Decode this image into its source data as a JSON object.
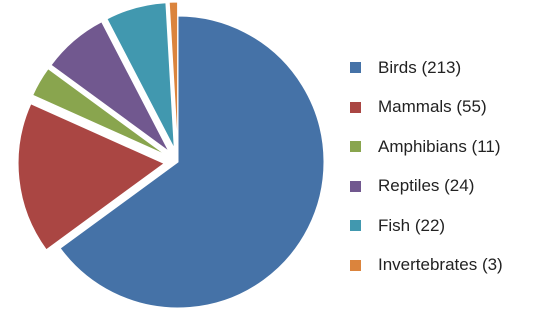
{
  "chart_data": {
    "type": "pie",
    "categories": [
      "Birds",
      "Mammals",
      "Amphibians",
      "Reptiles",
      "Fish",
      "Invertebrates"
    ],
    "values": [
      213,
      55,
      11,
      24,
      22,
      3
    ],
    "colors": [
      "#4572a7",
      "#aa4643",
      "#89a54e",
      "#71588f",
      "#4198af",
      "#db843d"
    ],
    "exploded": [
      false,
      true,
      true,
      true,
      true,
      true
    ],
    "start_angle": "12 o'clock, clockwise",
    "legend": {
      "position": "right",
      "labels": [
        "Birds (213)",
        "Mammals (55)",
        "Amphibians (11)",
        "Reptiles (24)",
        "Fish (22)",
        "Invertebrates (3)"
      ]
    }
  }
}
